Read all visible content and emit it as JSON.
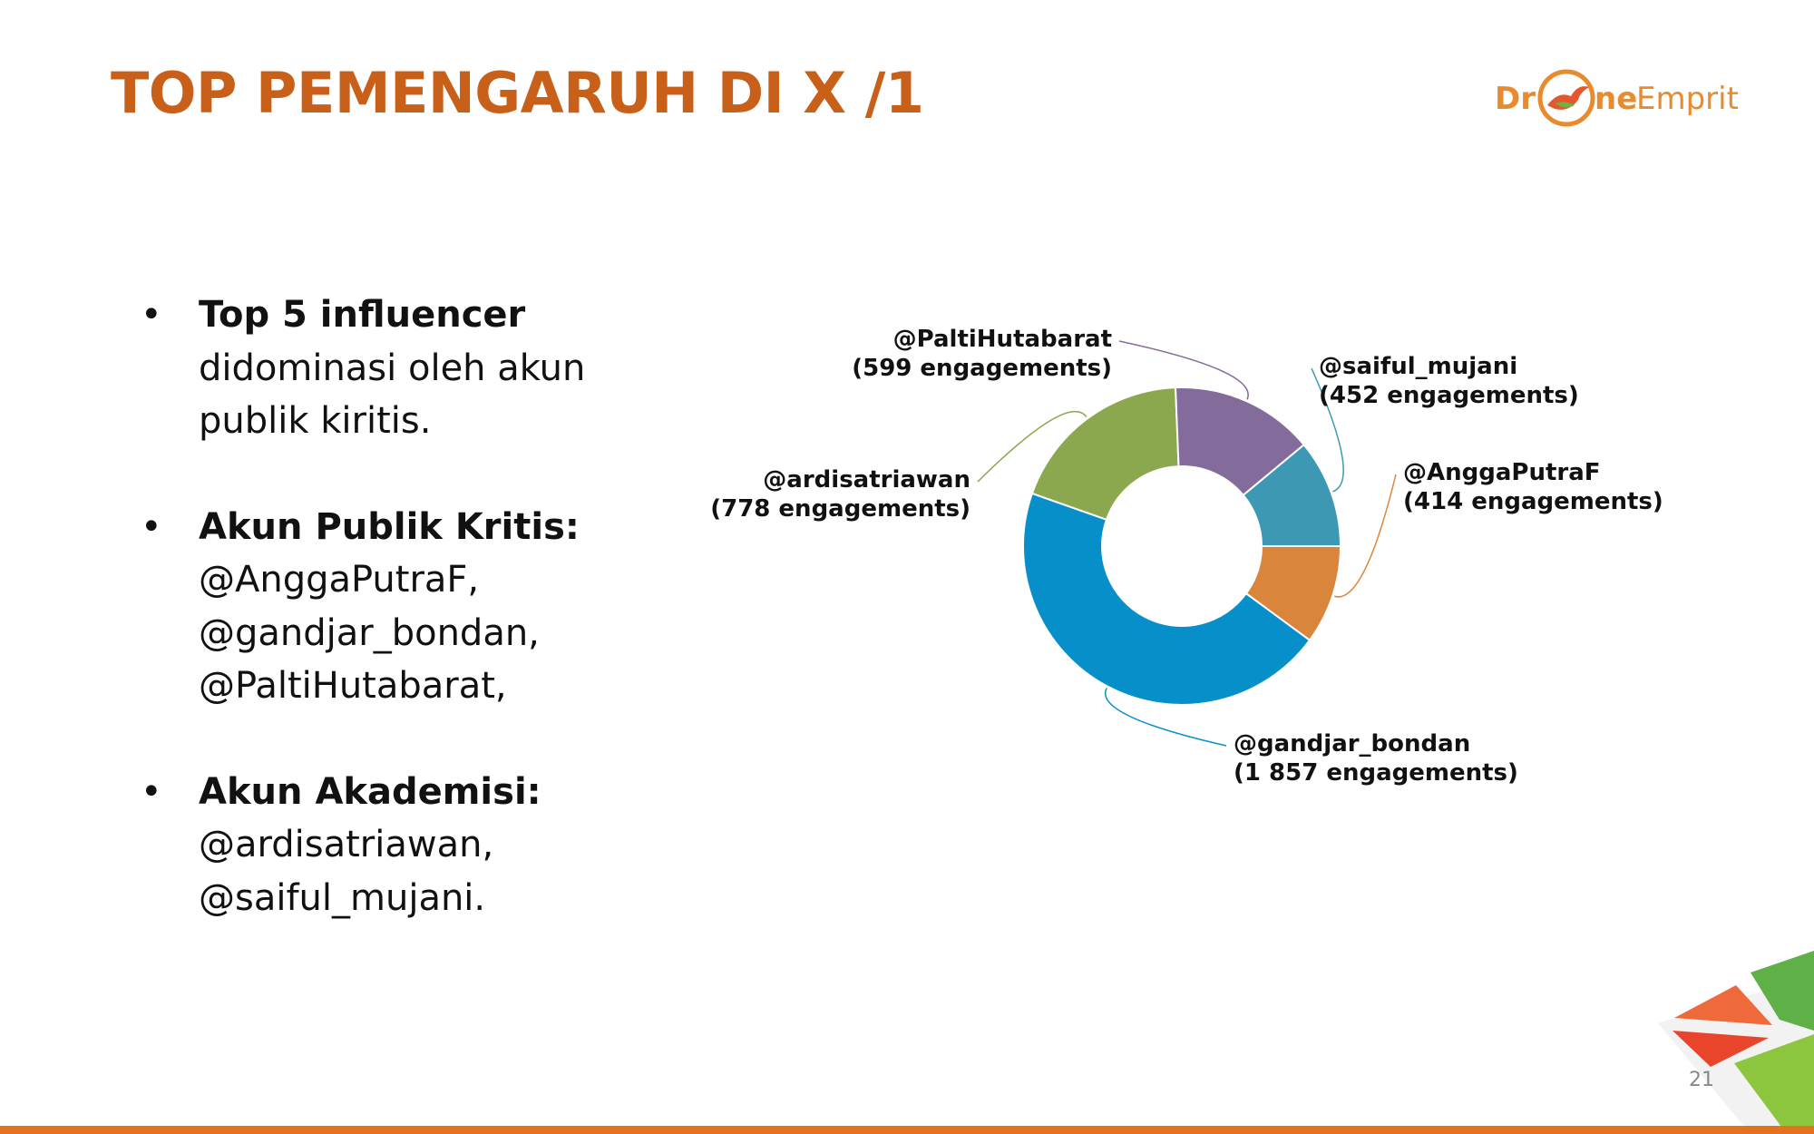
{
  "slide": {
    "title": "TOP PEMENGARUH DI X /1",
    "logo": {
      "part1": "Dr",
      "part2": "ne",
      "part3": "Emprit",
      "icon": "bird-circle-icon"
    },
    "page_number": "21"
  },
  "bullets": [
    {
      "head": "Top 5 influencer",
      "lines": [
        "didominasi oleh akun",
        "publik kiritis."
      ]
    },
    {
      "head": "Akun Publik Kritis:",
      "lines": [
        "@AnggaPutraF,",
        "@gandjar_bondan,",
        "@PaltiHutabarat,"
      ]
    },
    {
      "head": "Akun Akademisi:",
      "lines": [
        "@ardisatriawan,",
        "@saiful_mujani."
      ]
    }
  ],
  "colors": {
    "title": "#C8601A",
    "accent_bar": "#E3711E",
    "logo_orange": "#E88A2E"
  },
  "chart_data": {
    "type": "pie",
    "donut": true,
    "slices": [
      {
        "name": "@AnggaPutraF",
        "label": "(414 engagements)",
        "value": 414,
        "color": "#DA853C"
      },
      {
        "name": "@gandjar_bondan",
        "label": "(1 857 engagements)",
        "value": 1857,
        "color": "#078FC9"
      },
      {
        "name": "@ardisatriawan",
        "label": "(778 engagements)",
        "value": 778,
        "color": "#8BA84F"
      },
      {
        "name": "@PaltiHutabarat",
        "label": "(599 engagements)",
        "value": 599,
        "color": "#836B9B"
      },
      {
        "name": "@saiful_mujani",
        "label": "(452 engagements)",
        "value": 452,
        "color": "#3C98B3"
      }
    ]
  }
}
